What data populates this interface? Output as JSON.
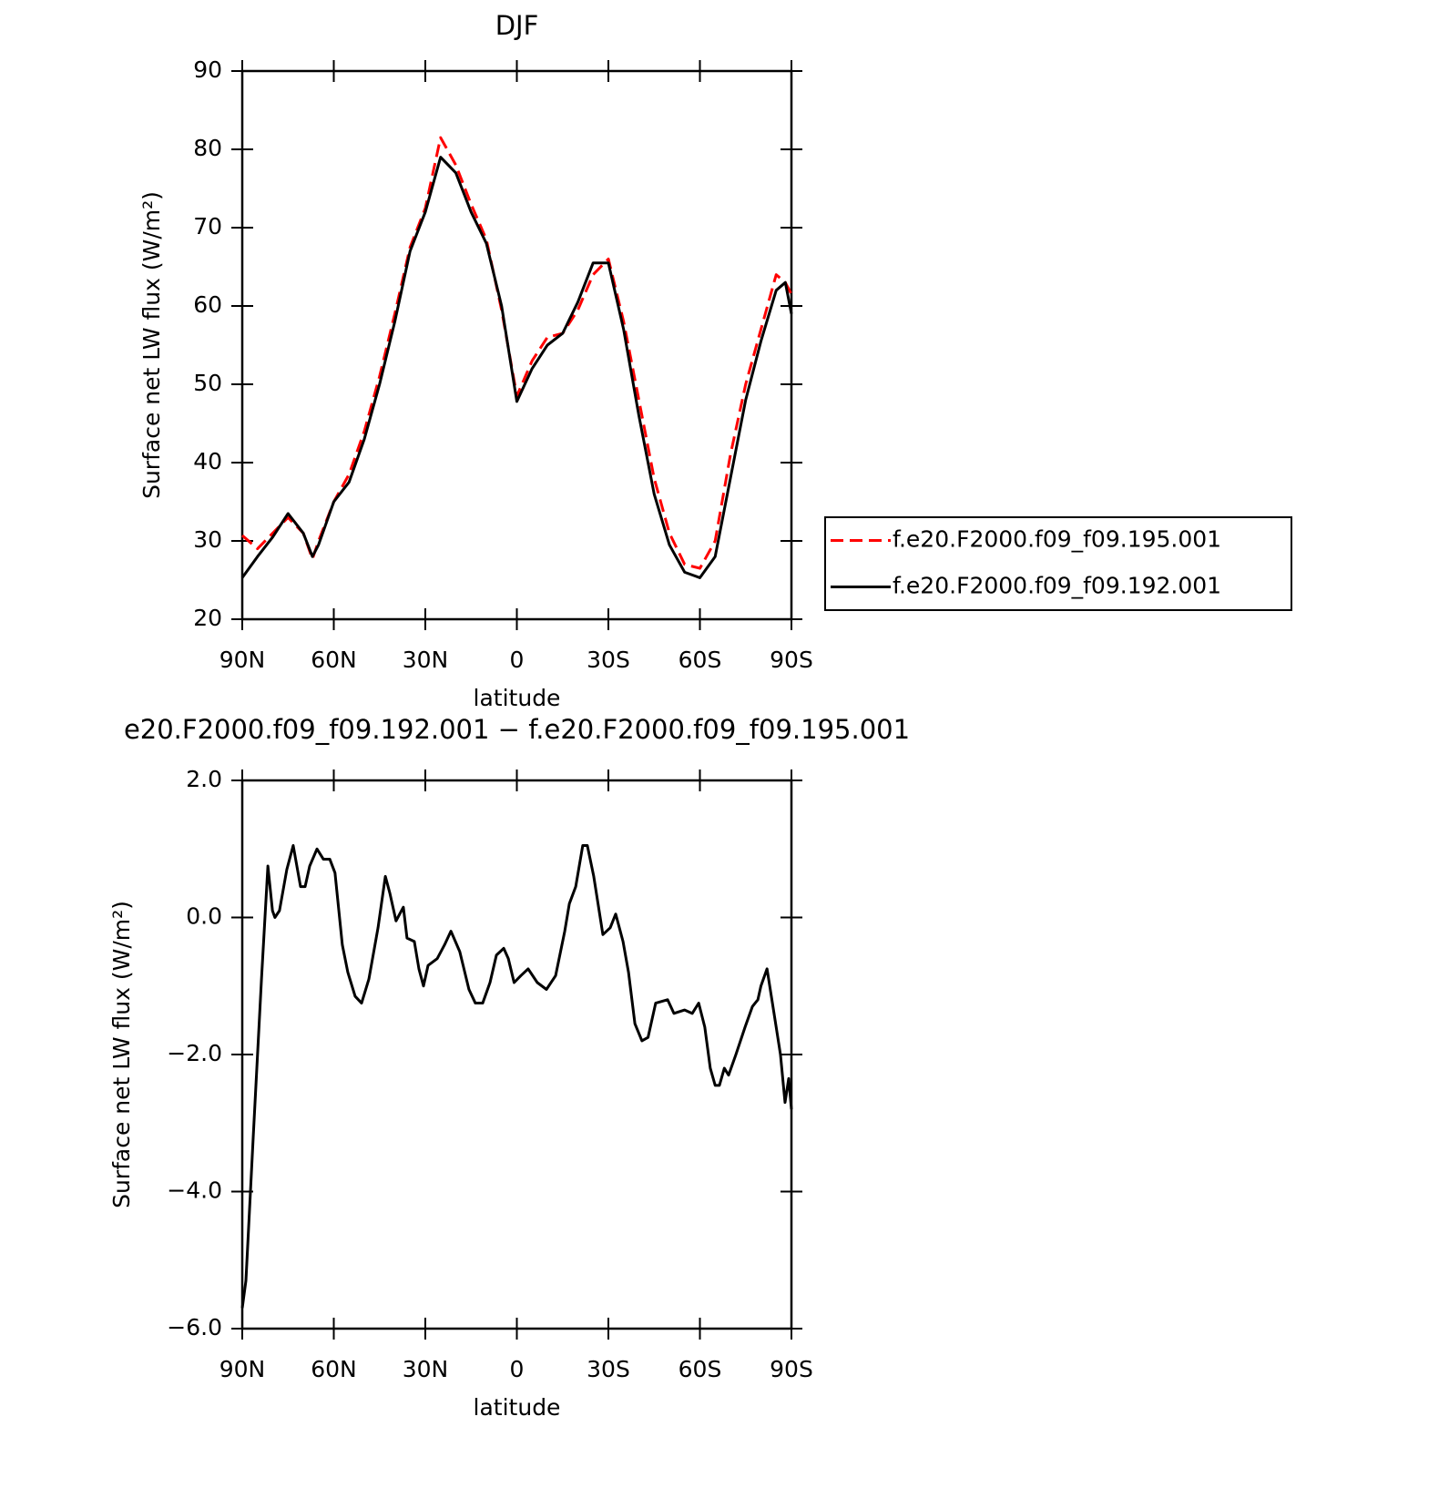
{
  "chart_data": [
    {
      "type": "line",
      "title": "DJF",
      "x_label": "latitude",
      "y_label": "Surface net LW flux (W/m²)",
      "xlim": [
        90,
        -90
      ],
      "xticks": [
        {
          "value": 90,
          "label": "90N"
        },
        {
          "value": 60,
          "label": "60N"
        },
        {
          "value": 30,
          "label": "30N"
        },
        0,
        {
          "value": -30,
          "label": "30S"
        },
        {
          "value": -60,
          "label": "60S"
        },
        {
          "value": -90,
          "label": "90S"
        }
      ],
      "ylim": [
        20,
        90
      ],
      "yticks": [
        20,
        30,
        40,
        50,
        60,
        70,
        80,
        90
      ],
      "x": [
        90,
        85,
        80,
        75,
        70,
        67,
        65,
        60,
        55,
        50,
        45,
        40,
        35,
        30,
        25,
        20,
        15,
        10,
        5,
        0,
        -5,
        -10,
        -15,
        -20,
        -25,
        -30,
        -35,
        -40,
        -45,
        -50,
        -55,
        -60,
        -65,
        -70,
        -75,
        -80,
        -85,
        -88,
        -90
      ],
      "legend": "right",
      "series": [
        {
          "name": "f.e20.F2000.f09_f09.195.001",
          "color": "#ff0000",
          "line_style": "dashed",
          "values": [
            30.7,
            29,
            31,
            33,
            31,
            27.7,
            30,
            35,
            38.5,
            44,
            51,
            59,
            67.5,
            72.5,
            81.5,
            78,
            73,
            68.5,
            59.5,
            48.5,
            53,
            56,
            56.5,
            59.5,
            64,
            66,
            58,
            48,
            38,
            31,
            27,
            26.5,
            30,
            41,
            50,
            57,
            64,
            63,
            61.5
          ]
        },
        {
          "name": "f.e20.F2000.f09_f09.192.001",
          "color": "#000000",
          "line_style": "solid",
          "values": [
            25.3,
            28,
            30.5,
            33.5,
            31,
            28,
            29.5,
            35,
            37.5,
            43,
            50,
            58,
            67,
            72,
            79,
            77,
            72,
            68,
            60,
            47.8,
            52,
            55,
            56.5,
            60.5,
            65.5,
            65.5,
            57,
            46,
            36,
            29.5,
            26,
            25.3,
            28,
            38,
            48,
            55.5,
            62,
            63,
            59
          ]
        }
      ]
    },
    {
      "type": "line",
      "title": "e20.F2000.f09_f09.192.001 − f.e20.F2000.f09_f09.195.001",
      "x_label": "latitude",
      "y_label": "Surface net LW flux (W/m²)",
      "xlim": [
        90,
        -90
      ],
      "xticks": [
        {
          "value": 90,
          "label": "90N"
        },
        {
          "value": 60,
          "label": "60N"
        },
        {
          "value": 30,
          "label": "30N"
        },
        0,
        {
          "value": -30,
          "label": "30S"
        },
        {
          "value": -60,
          "label": "60S"
        },
        {
          "value": -90,
          "label": "90S"
        }
      ],
      "ylim": [
        -6,
        2
      ],
      "yticks": [
        {
          "value": -6,
          "label": "−6.0"
        },
        {
          "value": -4,
          "label": "−4.0"
        },
        {
          "value": -2,
          "label": "−2.0"
        },
        {
          "value": 0,
          "label": "0.0"
        },
        {
          "value": 2,
          "label": "2.0"
        }
      ],
      "x": [
        90,
        88.8,
        86.4,
        83.7,
        81.6,
        80.1,
        79.3,
        77.8,
        75.4,
        73.3,
        70.9,
        69.4,
        67.9,
        65.5,
        63.4,
        61.3,
        59.6,
        57.2,
        55.4,
        53,
        50.9,
        48.5,
        45.5,
        43.1,
        41.6,
        39.6,
        37.2,
        36,
        33.6,
        32.1,
        30.6,
        29.1,
        26.1,
        23.7,
        21.6,
        18.7,
        15.7,
        13.6,
        11.2,
        8.8,
        6.7,
        4.3,
        2.8,
        0.9,
        -1.3,
        -3.7,
        -6.7,
        -9.7,
        -12.7,
        -15.7,
        -17.2,
        -19.3,
        -21.6,
        -23.1,
        -25.2,
        -28.2,
        -30.6,
        -32.4,
        -34.8,
        -36.6,
        -38.7,
        -41,
        -43,
        -45.5,
        -49.4,
        -51.5,
        -55,
        -57.5,
        -59.6,
        -61.6,
        -63.4,
        -65,
        -66.4,
        -68,
        -69.4,
        -71.8,
        -74.8,
        -77.2,
        -79,
        -80,
        -82,
        -84.3,
        -86.4,
        -87.9,
        -89.1,
        -90
      ],
      "series": [
        {
          "color": "#000000",
          "line_style": "solid",
          "values": [
            -5.7,
            -5.3,
            -3.2,
            -0.9,
            0.75,
            0.1,
            0.0,
            0.1,
            0.7,
            1.05,
            0.45,
            0.45,
            0.75,
            1.0,
            0.85,
            0.85,
            0.65,
            -0.4,
            -0.8,
            -1.15,
            -1.25,
            -0.9,
            -0.15,
            0.6,
            0.35,
            -0.05,
            0.15,
            -0.3,
            -0.35,
            -0.75,
            -1.0,
            -0.7,
            -0.6,
            -0.4,
            -0.2,
            -0.5,
            -1.05,
            -1.25,
            -1.25,
            -0.95,
            -0.55,
            -0.45,
            -0.6,
            -0.95,
            -0.85,
            -0.75,
            -0.95,
            -1.05,
            -0.85,
            -0.2,
            0.2,
            0.45,
            1.05,
            1.05,
            0.6,
            -0.25,
            -0.15,
            0.05,
            -0.35,
            -0.8,
            -1.55,
            -1.8,
            -1.75,
            -1.25,
            -1.2,
            -1.4,
            -1.35,
            -1.4,
            -1.25,
            -1.6,
            -2.2,
            -2.45,
            -2.45,
            -2.2,
            -2.3,
            -2.0,
            -1.6,
            -1.3,
            -1.2,
            -1.0,
            -0.75,
            -1.4,
            -2.0,
            -2.7,
            -2.35,
            -2.8
          ]
        }
      ]
    }
  ]
}
